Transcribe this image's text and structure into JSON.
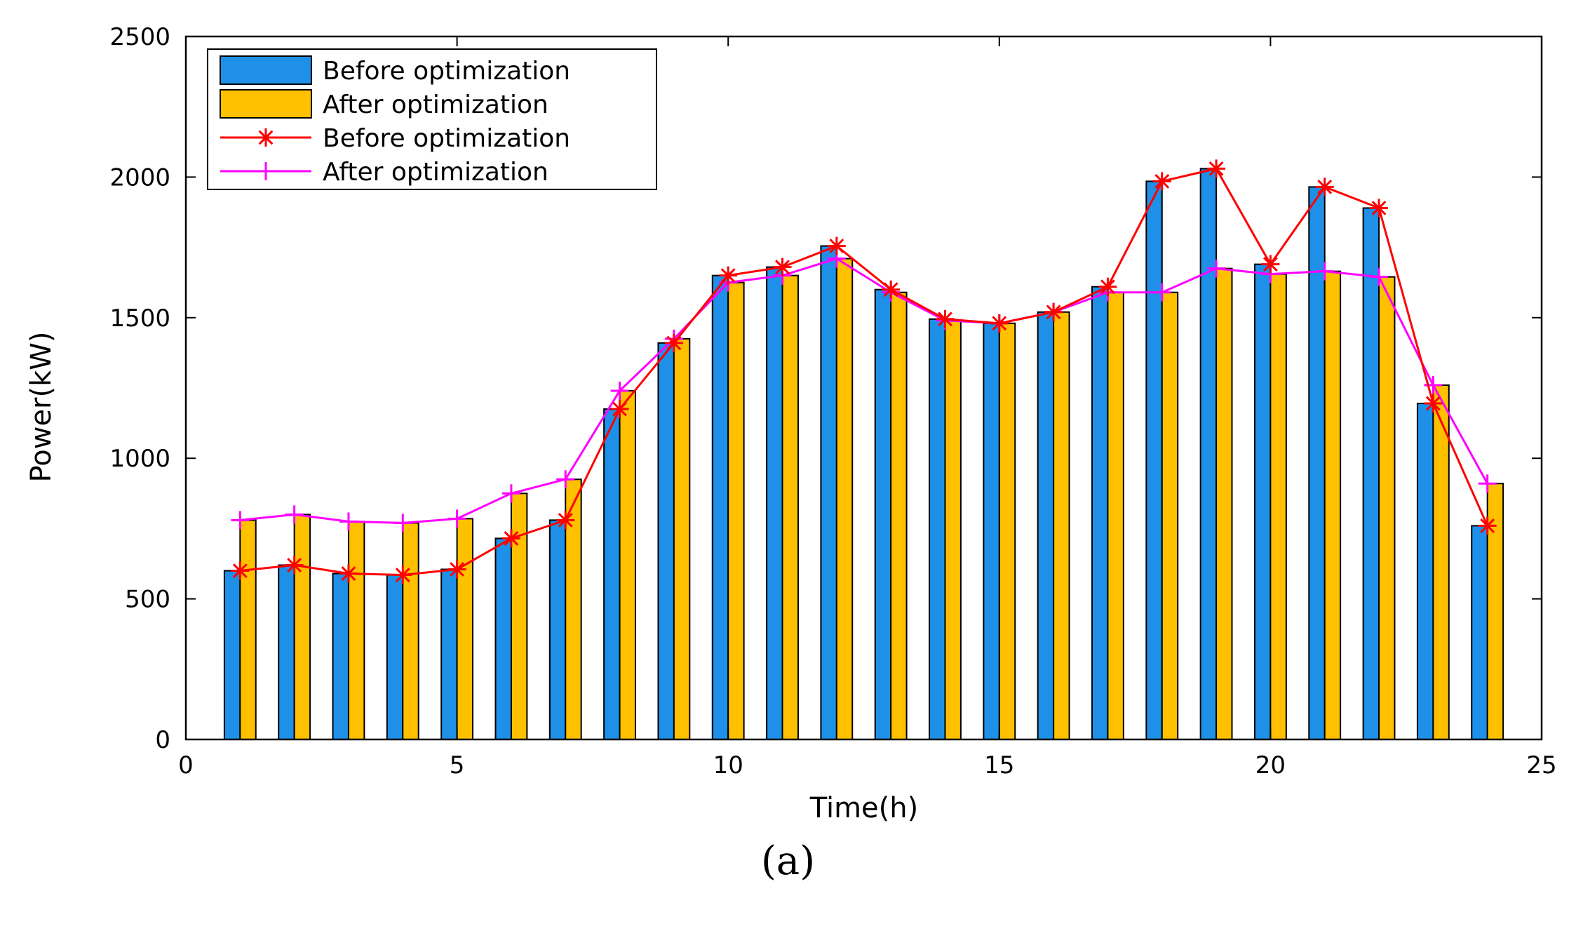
{
  "chart_data": {
    "type": "bar",
    "title": "",
    "xlabel": "Time(h)",
    "ylabel": "Power(kW)",
    "xlim": [
      0,
      25
    ],
    "ylim": [
      0,
      2500
    ],
    "xticks": [
      0,
      5,
      10,
      15,
      20,
      25
    ],
    "yticks": [
      0,
      500,
      1000,
      1500,
      2000,
      2500
    ],
    "grid": false,
    "legend_position": "top-left",
    "x": [
      1,
      2,
      3,
      4,
      5,
      6,
      7,
      8,
      9,
      10,
      11,
      12,
      13,
      14,
      15,
      16,
      17,
      18,
      19,
      20,
      21,
      22,
      23,
      24
    ],
    "bar_series": [
      {
        "name": "Before optimization",
        "color": "#1E90E8",
        "values": [
          600,
          620,
          590,
          585,
          605,
          715,
          780,
          1175,
          1410,
          1650,
          1680,
          1755,
          1600,
          1495,
          1480,
          1520,
          1610,
          1985,
          2030,
          1690,
          1965,
          1890,
          1195,
          760
        ]
      },
      {
        "name": "After optimization",
        "color": "#FFC000",
        "values": [
          780,
          800,
          775,
          770,
          785,
          875,
          925,
          1240,
          1425,
          1625,
          1650,
          1710,
          1590,
          1490,
          1480,
          1520,
          1590,
          1590,
          1675,
          1655,
          1665,
          1645,
          1260,
          910
        ]
      }
    ],
    "line_series": [
      {
        "name": "Before optimization",
        "color": "#FF0000",
        "marker": "asterisk",
        "values": [
          600,
          620,
          590,
          585,
          605,
          715,
          780,
          1175,
          1410,
          1650,
          1680,
          1755,
          1600,
          1495,
          1480,
          1520,
          1610,
          1985,
          2030,
          1690,
          1965,
          1890,
          1195,
          760
        ]
      },
      {
        "name": "After optimization",
        "color": "#FF00FF",
        "marker": "plus",
        "values": [
          780,
          800,
          775,
          770,
          785,
          875,
          925,
          1240,
          1425,
          1625,
          1650,
          1710,
          1590,
          1490,
          1480,
          1520,
          1590,
          1590,
          1675,
          1655,
          1665,
          1645,
          1260,
          910
        ]
      }
    ]
  },
  "caption": "(a)"
}
